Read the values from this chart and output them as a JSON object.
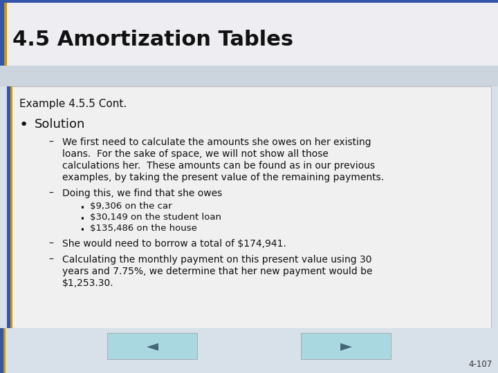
{
  "title": "4.5 Amortization Tables",
  "title_fontsize": 22,
  "slide_bg_color": "#d8e0ea",
  "title_bg_color": "#eeeef2",
  "content_bg_color": "#f0f0f0",
  "left_border_color1": "#3355aa",
  "left_border_color2": "#cc9900",
  "example_text": "Example 4.5.5 Cont.",
  "bullet_main": "Solution",
  "dash1_lines": [
    "We first need to calculate the amounts she owes on her existing",
    "loans.  For the sake of space, we will not show all those",
    "calculations her.  These amounts can be found as in our previous",
    "examples, by taking the present value of the remaining payments."
  ],
  "dash2": "Doing this, we find that she owes",
  "sub_bullets": [
    "$9,306 on the car",
    "$30,149 on the student loan",
    "$135,486 on the house"
  ],
  "dash3": "She would need to borrow a total of $174,941.",
  "dash4_lines": [
    "Calculating the monthly payment on this present value using 30",
    "years and 7.75%, we determine that her new payment would be",
    "$1,253.30."
  ],
  "footer": "4-107",
  "nav_button_color": "#aad8e0",
  "nav_arrow_color": "#446677"
}
